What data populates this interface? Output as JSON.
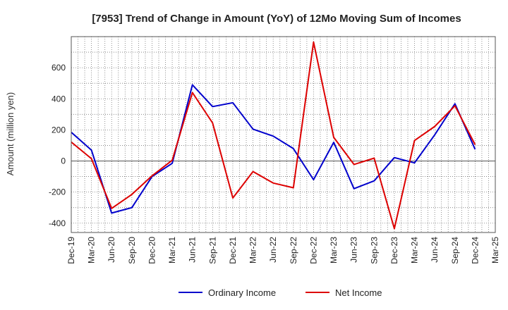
{
  "chart_data": {
    "type": "line",
    "title": "[7953]  Trend of Change in Amount (YoY) of 12Mo Moving Sum of Incomes",
    "xlabel": "",
    "ylabel": "Amount (million yen)",
    "categories": [
      "Dec-19",
      "Mar-20",
      "Jun-20",
      "Sep-20",
      "Dec-20",
      "Mar-21",
      "Jun-21",
      "Sep-21",
      "Dec-21",
      "Mar-22",
      "Jun-22",
      "Sep-22",
      "Dec-22",
      "Mar-23",
      "Jun-23",
      "Sep-23",
      "Dec-23",
      "Mar-24",
      "Jun-24",
      "Sep-24",
      "Dec-24",
      "Mar-25"
    ],
    "ylim": [
      -460,
      800
    ],
    "yticks": [
      -400,
      -200,
      0,
      200,
      400,
      600
    ],
    "grid": true,
    "legend_position": "bottom",
    "series": [
      {
        "name": "Ordinary Income",
        "color": "#0000cc",
        "values": [
          185,
          70,
          -335,
          -300,
          -100,
          -15,
          490,
          350,
          375,
          205,
          160,
          80,
          -120,
          120,
          -178,
          -128,
          22,
          -12,
          168,
          368,
          75,
          null
        ]
      },
      {
        "name": "Net Income",
        "color": "#dd0000",
        "values": [
          122,
          15,
          -305,
          -215,
          -95,
          5,
          440,
          245,
          -238,
          -68,
          -142,
          -172,
          765,
          152,
          -22,
          18,
          -435,
          132,
          222,
          355,
          105,
          null
        ]
      }
    ]
  }
}
